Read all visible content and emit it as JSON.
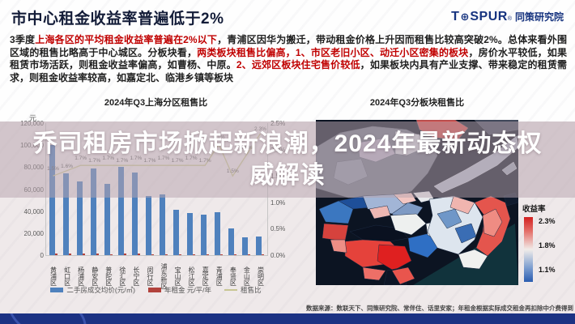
{
  "header": {
    "title": "市中心租金收益率普遍低于2%",
    "logo": {
      "brand_t": "T",
      "gear": "⊕",
      "brand_rest": "SPUR",
      "reg": "®",
      "brand_cn": "同策研究院"
    }
  },
  "intro": {
    "segments": [
      {
        "text": "3季度",
        "red": false
      },
      {
        "text": "上海各区的平均租金收益率普遍在2%以下",
        "red": true
      },
      {
        "text": "，青浦区因华为搬迁，带动租金价格上升因而租售比较高突破2%。总体来看外围区域的租售比略高于中心城区。分板块看，",
        "red": false
      },
      {
        "text": "两类板块租售比偏高，1、市区老旧小区、动迁小区密集的板块",
        "red": true
      },
      {
        "text": "，房价水平较低，如果租赁市场活跃，则租金收益率偏高，如曹杨、中原。",
        "red": false
      },
      {
        "text": "2、远郊区板块住宅售价较低",
        "red": true
      },
      {
        "text": "，如果板块内具有产业支撑、带来稳定的租赁需求，则租金收益率较高，如嘉定北、临港乡镇等板块",
        "red": false
      }
    ]
  },
  "overlay": {
    "lines": [
      "乔司租房市场掀起新浪潮，2024年最新动态权",
      "威解读"
    ]
  },
  "chart_data": [
    {
      "type": "bar",
      "title": "2024年Q3上海分区租售比",
      "y_unit": "元",
      "categories": [
        "黄浦区",
        "虹口区",
        "杨浦区",
        "静安区",
        "普陀区",
        "徐汇区",
        "长宁区",
        "闵行区",
        "浦东新区",
        "宝山区",
        "松江区",
        "嘉定区",
        "青浦区",
        "奉贤区",
        "金山区",
        "崇明区"
      ],
      "series": [
        {
          "name": "二手房成交均价(元/㎡)",
          "kind": "bar",
          "axis": "left",
          "color": "#4f81bd",
          "values": [
            100000,
            74000,
            67000,
            79000,
            65000,
            80000,
            75000,
            54000,
            55000,
            41000,
            38000,
            37000,
            39000,
            24000,
            16000,
            17000
          ]
        },
        {
          "name": "年租金 元/平/年",
          "kind": "bar",
          "axis": "left",
          "color": "#b2423c",
          "values": [
            1500,
            1180,
            1140,
            1340,
            1100,
            1360,
            1280,
            920,
            940,
            710,
            640,
            620,
            800,
            360,
            310,
            380
          ]
        },
        {
          "name": "租售比",
          "kind": "line",
          "axis": "right",
          "color": "#c8c693",
          "values": [
            1.5,
            1.6,
            1.7,
            1.7,
            1.7,
            1.7,
            1.7,
            1.7,
            1.7,
            1.7,
            1.7,
            1.7,
            2.1,
            1.5,
            1.9,
            2.3
          ],
          "labels": [
            "1.5%",
            "1.6%",
            "1.7%",
            "1.7%",
            "1.7%",
            "1.7%",
            "1.7%",
            "1.7%",
            "1.7%",
            "1.7%",
            "1.7%",
            "1.7%",
            "2.1%",
            "1.5%",
            "1.9%",
            "2.3%"
          ]
        }
      ],
      "ylim_left": [
        0,
        120000
      ],
      "left_ticks": [
        "0",
        "20,000",
        "40,000",
        "60,000",
        "80,000",
        "100,000",
        "120,000"
      ],
      "ylim_right": [
        0,
        2.5
      ],
      "right_ticks": [
        "0.0%",
        "0.5%",
        "1.0%",
        "1.5%",
        "2.0%",
        "2.5%"
      ],
      "grid": false,
      "legend_position": "bottom"
    },
    {
      "type": "heatmap",
      "title": "2024年Q3分板块租售比",
      "legend": {
        "title": "收益率",
        "ticks": [
          "2.3%",
          "1.8%",
          "1.1%"
        ],
        "color_high": "#d21f1f",
        "color_mid": "#f1ece9",
        "color_low": "#2a5cb0"
      }
    }
  ],
  "source_note": "数据来源：数联天下、同策研究院、常伴住、话里安家；年租金根据实际成交租金再扣除中介费得到",
  "colors": {
    "accent_red": "#c00000",
    "title_navy": "#131c38",
    "logo_blue": "#16337f",
    "footer_blue": "#1c3283",
    "banner_tint": "#b9a4af",
    "map_background": "#0c1422"
  }
}
